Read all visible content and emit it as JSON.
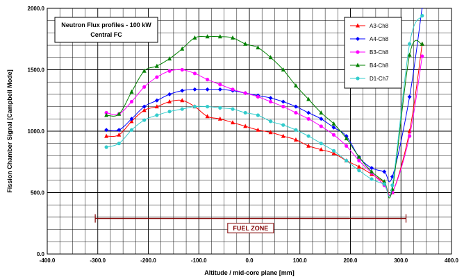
{
  "chart_data": {
    "type": "line",
    "title_lines": [
      "Neutron Flux profiles - 100 kW",
      "Central FC"
    ],
    "xlabel": "Altitude / mid-core plane [mm]",
    "ylabel": "Fission Chamber Signal [Campbell Mode]",
    "xlim": [
      -400,
      400
    ],
    "ylim": [
      0,
      2000
    ],
    "x_ticks": [
      -400,
      -300,
      -200,
      -100,
      0,
      100,
      200,
      300,
      400
    ],
    "x_tick_labels": [
      "-400.0",
      "-300.0",
      "-200.0",
      "-100.0",
      "0.0",
      "100.0",
      "200.0",
      "300.0",
      "400.0"
    ],
    "y_ticks": [
      0,
      500,
      1000,
      1500,
      2000
    ],
    "y_tick_labels": [
      "0.0",
      "500.0",
      "1000.0",
      "1500.0",
      "2000.0"
    ],
    "grid": true,
    "x_minor_step": 25,
    "y_minor_step": 100,
    "legend_position": "top-right",
    "series": [
      {
        "name": "A3-Ch8",
        "color": "#ff0000",
        "marker": "triangle",
        "x": [
          -283,
          -258,
          -233,
          -208,
          -183,
          -158,
          -133,
          -108,
          -83,
          -58,
          -33,
          -8,
          17,
          42,
          67,
          92,
          117,
          142,
          167,
          192,
          217,
          242,
          267,
          283,
          317,
          342
        ],
        "y": [
          960,
          970,
          1080,
          1170,
          1200,
          1240,
          1250,
          1200,
          1120,
          1100,
          1070,
          1040,
          1010,
          990,
          960,
          930,
          880,
          850,
          820,
          760,
          710,
          650,
          580,
          500,
          1000,
          1710
        ]
      },
      {
        "name": "A4-Ch8",
        "color": "#0000ff",
        "marker": "diamond",
        "x": [
          -283,
          -258,
          -233,
          -208,
          -183,
          -158,
          -133,
          -108,
          -83,
          -58,
          -33,
          -8,
          17,
          42,
          67,
          92,
          117,
          142,
          167,
          192,
          217,
          242,
          267,
          283,
          317,
          342
        ],
        "y": [
          1010,
          1010,
          1100,
          1200,
          1250,
          1300,
          1330,
          1340,
          1340,
          1340,
          1330,
          1310,
          1290,
          1270,
          1240,
          1200,
          1150,
          1100,
          1030,
          960,
          790,
          700,
          670,
          630,
          1280,
          2010
        ]
      },
      {
        "name": "B3-Ch8",
        "color": "#ff00ff",
        "marker": "circle",
        "x": [
          -283,
          -258,
          -233,
          -208,
          -183,
          -158,
          -133,
          -108,
          -83,
          -58,
          -33,
          -8,
          17,
          42,
          67,
          92,
          117,
          142,
          167,
          192,
          217,
          242,
          267,
          283,
          317,
          342
        ],
        "y": [
          1150,
          1140,
          1240,
          1360,
          1440,
          1490,
          1500,
          1470,
          1420,
          1380,
          1340,
          1310,
          1280,
          1240,
          1200,
          1150,
          1100,
          1040,
          970,
          880,
          760,
          660,
          560,
          500,
          960,
          1610
        ]
      },
      {
        "name": "B4-Ch8",
        "color": "#008000",
        "marker": "triangle",
        "x": [
          -283,
          -258,
          -233,
          -208,
          -183,
          -158,
          -133,
          -108,
          -83,
          -58,
          -33,
          -8,
          17,
          42,
          67,
          92,
          117,
          142,
          167,
          192,
          217,
          242,
          267,
          283,
          317,
          342
        ],
        "y": [
          1130,
          1140,
          1320,
          1490,
          1530,
          1590,
          1670,
          1760,
          1770,
          1770,
          1760,
          1710,
          1680,
          1600,
          1500,
          1370,
          1260,
          1150,
          1060,
          940,
          790,
          670,
          590,
          530,
          1620,
          1710
        ]
      },
      {
        "name": "D1-Ch7",
        "color": "#33cccc",
        "marker": "circle",
        "x": [
          -283,
          -258,
          -233,
          -208,
          -183,
          -158,
          -133,
          -108,
          -83,
          -58,
          -33,
          -8,
          17,
          42,
          67,
          92,
          117,
          142,
          167,
          192,
          217,
          242,
          267,
          283,
          317,
          342
        ],
        "y": [
          870,
          900,
          1010,
          1090,
          1130,
          1160,
          1180,
          1200,
          1200,
          1190,
          1180,
          1150,
          1130,
          1080,
          1050,
          1010,
          960,
          900,
          840,
          760,
          680,
          610,
          570,
          560,
          1710,
          1940
        ]
      }
    ],
    "annotation": {
      "label": "FUEL ZONE",
      "x_start": -305,
      "x_end": 310,
      "y": 290,
      "color": "#800000"
    }
  }
}
